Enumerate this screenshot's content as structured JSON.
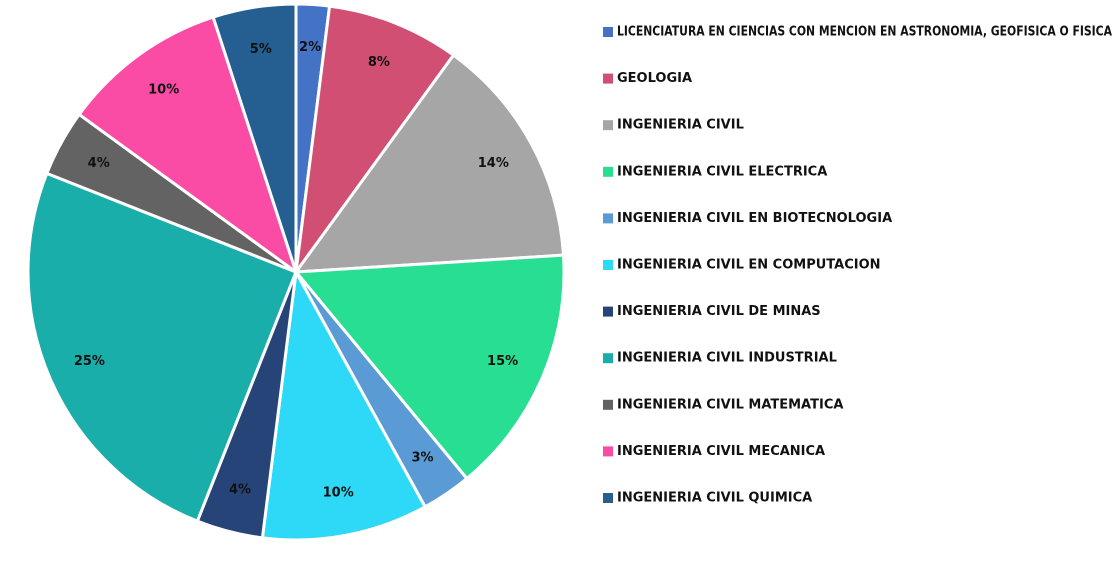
{
  "chart_data": {
    "type": "pie",
    "title": "",
    "legend_position": "right",
    "slices": [
      {
        "label": "LICENCIATURA EN CIENCIAS CON MENCION EN ASTRONOMIA, GEOFISICA O FISICA",
        "value": 2,
        "display": "2%",
        "color": "#4472C4"
      },
      {
        "label": "GEOLOGIA",
        "value": 8,
        "display": "8%",
        "color": "#D04F72"
      },
      {
        "label": "INGENIERIA CIVIL",
        "value": 14,
        "display": "14%",
        "color": "#A6A6A6"
      },
      {
        "label": "INGENIERIA CIVIL ELECTRICA",
        "value": 15,
        "display": "15%",
        "color": "#27DE93"
      },
      {
        "label": "INGENIERIA CIVIL EN BIOTECNOLOGIA",
        "value": 3,
        "display": "3%",
        "color": "#5B9BD5"
      },
      {
        "label": "INGENIERIA CIVIL EN COMPUTACION",
        "value": 10,
        "display": "10%",
        "color": "#2DD9F6"
      },
      {
        "label": "INGENIERIA CIVIL DE MINAS",
        "value": 4,
        "display": "4%",
        "color": "#264478"
      },
      {
        "label": "INGENIERIA CIVIL INDUSTRIAL",
        "value": 25,
        "display": "25%",
        "color": "#1AAEAA"
      },
      {
        "label": "INGENIERIA CIVIL MATEMATICA",
        "value": 4,
        "display": "4%",
        "color": "#636363"
      },
      {
        "label": "INGENIERIA CIVIL MECANICA",
        "value": 10,
        "display": "10%",
        "color": "#FA4BA5"
      },
      {
        "label": "INGENIERIA CIVIL QUIMICA",
        "value": 5,
        "display": "5%",
        "color": "#255E91"
      }
    ]
  }
}
